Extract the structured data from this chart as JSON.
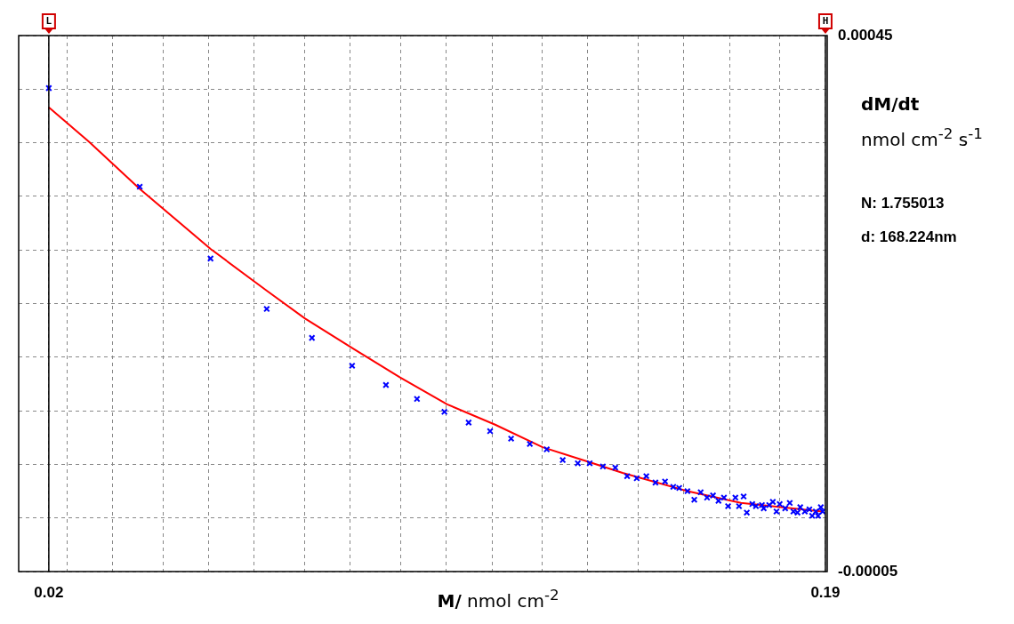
{
  "chart_data": {
    "type": "scatter",
    "xlabel": "M/ nmol cm$^{-2}$",
    "ylabel": "dM/dt\nnmol cm$^{-2}$ s$^{-1}$",
    "xlim": [
      0.0134,
      0.1904
    ],
    "ylim": [
      -5e-05,
      0.00045
    ],
    "xticks": [
      0.02,
      {
        "value": 0.024,
        "label": null
      },
      {
        "value": 0.034,
        "label": null
      },
      {
        "value": 0.045,
        "label": null
      },
      {
        "value": 0.055,
        "label": null
      },
      {
        "value": 0.065,
        "label": null
      },
      {
        "value": 0.076,
        "label": null
      },
      {
        "value": 0.086,
        "label": null
      },
      {
        "value": 0.097,
        "label": null
      },
      {
        "value": 0.107,
        "label": null
      },
      {
        "value": 0.117,
        "label": null
      },
      {
        "value": 0.128,
        "label": null
      },
      {
        "value": 0.138,
        "label": null
      },
      {
        "value": 0.149,
        "label": null
      },
      {
        "value": 0.159,
        "label": null
      },
      {
        "value": 0.169,
        "label": null
      },
      {
        "value": 0.18,
        "label": null
      },
      0.19
    ],
    "yticks": [
      {
        "value": -5e-05,
        "label": "-0.00005"
      },
      {
        "value": 0,
        "label": null
      },
      {
        "value": 5e-05,
        "label": null
      },
      {
        "value": 0.0001,
        "label": null
      },
      {
        "value": 0.00015,
        "label": null
      },
      {
        "value": 0.0002,
        "label": null
      },
      {
        "value": 0.00025,
        "label": null
      },
      {
        "value": 0.0003,
        "label": null
      },
      {
        "value": 0.00035,
        "label": null
      },
      {
        "value": 0.0004,
        "label": null
      },
      0.00045
    ],
    "grid": true,
    "annotations": [
      "N: 1.755013",
      "d: 168.224nm"
    ],
    "ref_lines": [
      {
        "axis": "x",
        "value": 0.02,
        "label": "L",
        "color": "#000000"
      },
      {
        "axis": "x",
        "value": 0.19,
        "label": "H",
        "color": "#000000"
      }
    ],
    "series": [
      {
        "color": "#0000ff",
        "marker": "cross",
        "x": [
          0.02,
          0.0399,
          0.0554,
          0.0677,
          0.0776,
          0.0864,
          0.0938,
          0.1006,
          0.1066,
          0.1119,
          0.1166,
          0.1212,
          0.1253,
          0.129,
          0.1325,
          0.1358,
          0.1384,
          0.1413,
          0.144,
          0.1466,
          0.1487,
          0.1508,
          0.1528,
          0.1549,
          0.1567,
          0.158,
          0.1598,
          0.1613,
          0.1627,
          0.1641,
          0.1654,
          0.1666,
          0.1678,
          0.1687,
          0.1703,
          0.1711,
          0.1721,
          0.1728,
          0.174,
          0.1748,
          0.1761,
          0.1765,
          0.1777,
          0.1785,
          0.1793,
          0.18,
          0.1812,
          0.1822,
          0.183,
          0.1839,
          0.1845,
          0.1855,
          0.1865,
          0.1871,
          0.1879,
          0.1884,
          0.189,
          0.1894
        ],
        "values": [
          0.000401,
          0.000309,
          0.000242,
          0.000195,
          0.000168,
          0.000142,
          0.000124,
          0.000111,
          9.9e-05,
          8.9e-05,
          8.1e-05,
          7.4e-05,
          6.9e-05,
          6.4e-05,
          5.4e-05,
          5.1e-05,
          5.1e-05,
          4.8e-05,
          4.7e-05,
          3.9e-05,
          3.7e-05,
          3.9e-05,
          3.3e-05,
          3.4e-05,
          2.9e-05,
          2.8e-05,
          2.5e-05,
          1.7e-05,
          2.4e-05,
          1.9e-05,
          2.1e-05,
          1.6e-05,
          1.9e-05,
          1.1e-05,
          1.9e-05,
          1.1e-05,
          2e-05,
          5e-06,
          1.3e-05,
          1.1e-05,
          1.2e-05,
          9e-06,
          1.2e-05,
          1.5e-05,
          6e-06,
          1.3e-05,
          9e-06,
          1.4e-05,
          6e-06,
          5e-06,
          1e-05,
          6e-06,
          8e-06,
          2e-06,
          6e-06,
          2e-06,
          1e-05,
          6e-06
        ]
      },
      {
        "type": "line",
        "color": "#ff0000",
        "marker": "none",
        "x": [
          0.02,
          0.0288,
          0.0399,
          0.0554,
          0.0677,
          0.0761,
          0.0866,
          0.0969,
          0.1072,
          0.1177,
          0.1281,
          0.1384,
          0.1456,
          0.1598,
          0.1715,
          0.1894
        ],
        "values": [
          0.000383,
          0.000351,
          0.000307,
          0.000251,
          0.000212,
          0.000186,
          0.000158,
          0.000131,
          0.000106,
          8.7e-05,
          6.6e-05,
          5.2e-05,
          4.2e-05,
          2.5e-05,
          1.4e-05,
          6e-06
        ]
      }
    ]
  }
}
